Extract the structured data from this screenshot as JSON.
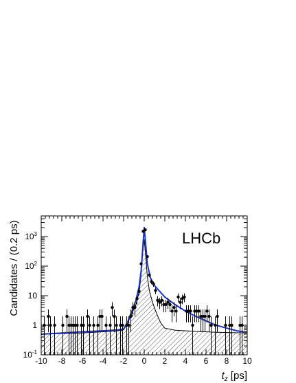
{
  "chart_data": {
    "type": "scatter",
    "title": "",
    "annotation": "LHCb",
    "xlabel_symbol": "t",
    "xlabel_subscript": "z",
    "xlabel_unit": " [ps]",
    "ylabel": "Candidates / (0.2 ps)",
    "xlim": [
      -10,
      10
    ],
    "ylim": [
      0.1,
      5000
    ],
    "yscale": "log",
    "x_ticks": [
      -10,
      -8,
      -6,
      -4,
      -2,
      0,
      2,
      4,
      6,
      8,
      10
    ],
    "x_tick_labels": [
      "-10",
      "-8",
      "-6",
      "-4",
      "-2",
      "0",
      "2",
      "4",
      "6",
      "8",
      "10"
    ],
    "y_ticks": [
      0.1,
      1,
      10,
      100,
      1000
    ],
    "y_tick_labels": [
      {
        "base": "10",
        "exp": "-1"
      },
      {
        "base": "1",
        "exp": ""
      },
      {
        "base": "10",
        "exp": ""
      },
      {
        "base": "10",
        "exp": "2"
      },
      {
        "base": "10",
        "exp": "3"
      }
    ],
    "series": [
      {
        "kind": "data",
        "points": [
          [
            -9.7,
            1
          ],
          [
            -9.3,
            2
          ],
          [
            -9.1,
            1
          ],
          [
            -8.7,
            1
          ],
          [
            -7.9,
            1
          ],
          [
            -7.5,
            2
          ],
          [
            -7.3,
            1
          ],
          [
            -7.1,
            1
          ],
          [
            -6.9,
            1
          ],
          [
            -6.7,
            1
          ],
          [
            -6.5,
            1
          ],
          [
            -6.1,
            1
          ],
          [
            -5.9,
            1
          ],
          [
            -5.5,
            2
          ],
          [
            -5.3,
            1
          ],
          [
            -4.9,
            1
          ],
          [
            -4.5,
            1
          ],
          [
            -4.3,
            2
          ],
          [
            -4.1,
            2
          ],
          [
            -3.7,
            1
          ],
          [
            -3.3,
            1
          ],
          [
            -3.1,
            4
          ],
          [
            -2.9,
            2
          ],
          [
            -2.7,
            1
          ],
          [
            -2.3,
            1
          ],
          [
            -2.1,
            1
          ],
          [
            -1.7,
            1
          ],
          [
            -1.5,
            1
          ],
          [
            -1.3,
            2
          ],
          [
            -1.1,
            4
          ],
          [
            -0.9,
            4
          ],
          [
            -0.7,
            8
          ],
          [
            -0.5,
            14
          ],
          [
            -0.3,
            120
          ],
          [
            -0.1,
            1500
          ],
          [
            0.1,
            1700
          ],
          [
            0.3,
            210
          ],
          [
            0.5,
            50
          ],
          [
            0.7,
            30
          ],
          [
            0.9,
            25
          ],
          [
            1.1,
            15
          ],
          [
            1.3,
            7
          ],
          [
            1.5,
            6
          ],
          [
            1.7,
            7
          ],
          [
            1.9,
            5
          ],
          [
            2.1,
            5
          ],
          [
            2.3,
            6
          ],
          [
            2.5,
            5
          ],
          [
            2.7,
            3
          ],
          [
            2.9,
            4
          ],
          [
            3.1,
            3
          ],
          [
            3.3,
            9
          ],
          [
            3.5,
            6
          ],
          [
            3.7,
            8
          ],
          [
            3.9,
            9
          ],
          [
            4.1,
            3
          ],
          [
            4.3,
            3
          ],
          [
            4.5,
            3
          ],
          [
            4.7,
            1
          ],
          [
            4.9,
            3
          ],
          [
            5.1,
            3
          ],
          [
            5.3,
            3
          ],
          [
            5.5,
            2
          ],
          [
            5.7,
            2
          ],
          [
            5.9,
            2
          ],
          [
            6.1,
            3
          ],
          [
            6.3,
            2
          ],
          [
            6.5,
            1
          ],
          [
            6.9,
            1
          ],
          [
            7.1,
            2
          ],
          [
            7.9,
            1
          ],
          [
            8.3,
            1
          ],
          [
            8.5,
            1
          ],
          [
            9.3,
            1
          ],
          [
            9.5,
            1
          ]
        ]
      },
      {
        "kind": "total-fit",
        "color": "#1a33c8",
        "points": [
          [
            -10,
            0.5
          ],
          [
            -6,
            0.6
          ],
          [
            -4,
            0.65
          ],
          [
            -2.6,
            0.7
          ],
          [
            -2,
            0.75
          ],
          [
            -1.6,
            1.3
          ],
          [
            -1.2,
            3
          ],
          [
            -0.8,
            7
          ],
          [
            -0.5,
            20
          ],
          [
            -0.3,
            70
          ],
          [
            -0.15,
            400
          ],
          [
            0,
            2100
          ],
          [
            0.15,
            500
          ],
          [
            0.3,
            120
          ],
          [
            0.6,
            40
          ],
          [
            1,
            22
          ],
          [
            2,
            9
          ],
          [
            3,
            5
          ],
          [
            4,
            3
          ],
          [
            5,
            2
          ],
          [
            6,
            1.4
          ],
          [
            7,
            1
          ],
          [
            8,
            0.8
          ],
          [
            9,
            0.65
          ],
          [
            10,
            0.58
          ]
        ]
      },
      {
        "kind": "component",
        "style": "hatched",
        "color": "#000000",
        "points": [
          [
            -10,
            0.5
          ],
          [
            -6,
            0.55
          ],
          [
            -4,
            0.6
          ],
          [
            -2.6,
            0.65
          ],
          [
            -2,
            0.7
          ],
          [
            -1.6,
            1.2
          ],
          [
            -1.2,
            2.5
          ],
          [
            -0.8,
            5
          ],
          [
            -0.5,
            13
          ],
          [
            -0.3,
            50
          ],
          [
            -0.15,
            300
          ],
          [
            0,
            800
          ],
          [
            0.15,
            200
          ],
          [
            0.3,
            45
          ],
          [
            0.5,
            15
          ],
          [
            0.8,
            6
          ],
          [
            1.2,
            2.5
          ],
          [
            1.6,
            1.2
          ],
          [
            2,
            0.8
          ],
          [
            3,
            0.68
          ],
          [
            5,
            0.62
          ],
          [
            7,
            0.58
          ],
          [
            10,
            0.55
          ]
        ]
      }
    ]
  }
}
